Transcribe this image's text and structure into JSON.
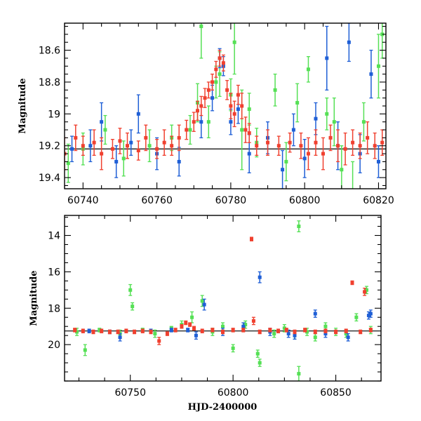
{
  "chart_data": [
    {
      "type": "scatter",
      "title": "",
      "xlabel": "",
      "ylabel": "Magnitude",
      "xlim": [
        60735,
        60822
      ],
      "ylim": [
        19.47,
        18.43
      ],
      "y_inverted": true,
      "xticks": [
        60740,
        60760,
        60780,
        60800,
        60820
      ],
      "yticks": [
        18.6,
        18.8,
        19,
        19.2,
        19.4
      ],
      "ytick_labels": [
        "18.6",
        "18.8",
        "19",
        "19.2",
        "19.4"
      ],
      "error_bars": true,
      "colors": {
        "green": "#55e055",
        "blue": "#1f5fd6",
        "red": "#f0402f",
        "trend": "#000000"
      },
      "series": [
        {
          "color": "green",
          "points": [
            [
              60736,
              19.31,
              0.12
            ],
            [
              60740,
              19.22,
              0.1
            ],
            [
              60746,
              19.1,
              0.09
            ],
            [
              60751,
              19.28,
              0.11
            ],
            [
              60758,
              19.2,
              0.1
            ],
            [
              60764,
              19.15,
              0.08
            ],
            [
              60769,
              19.1,
              0.09
            ],
            [
              60771,
              18.93,
              0.12
            ],
            [
              60772,
              18.45,
              0.2
            ],
            [
              60774,
              19.05,
              0.1
            ],
            [
              60776,
              18.8,
              0.1
            ],
            [
              60777,
              18.75,
              0.14
            ],
            [
              60780,
              18.88,
              0.1
            ],
            [
              60781,
              18.55,
              0.2
            ],
            [
              60783,
              19.1,
              0.25
            ],
            [
              60785,
              18.97,
              0.1
            ],
            [
              60787,
              19.18,
              0.09
            ],
            [
              60792,
              18.85,
              0.1
            ],
            [
              60795,
              19.3,
              0.12
            ],
            [
              60798,
              18.93,
              0.12
            ],
            [
              60801,
              18.72,
              0.08
            ],
            [
              60806,
              19.0,
              0.1
            ],
            [
              60808,
              19.05,
              0.15
            ],
            [
              60810,
              19.35,
              0.15
            ],
            [
              60813,
              19.5,
              0.2
            ],
            [
              60816,
              19.05,
              0.12
            ],
            [
              60820,
              18.7,
              0.2
            ],
            [
              60821,
              18.5,
              0.15
            ]
          ]
        },
        {
          "color": "blue",
          "points": [
            [
              60737,
              19.22,
              0.08
            ],
            [
              60742,
              19.2,
              0.1
            ],
            [
              60745,
              19.05,
              0.12
            ],
            [
              60749,
              19.3,
              0.1
            ],
            [
              60753,
              19.18,
              0.08
            ],
            [
              60755,
              19.0,
              0.12
            ],
            [
              60760,
              19.25,
              0.1
            ],
            [
              60766,
              19.3,
              0.09
            ],
            [
              60772,
              19.05,
              0.1
            ],
            [
              60775,
              18.9,
              0.08
            ],
            [
              60777,
              18.65,
              0.06
            ],
            [
              60778,
              18.7,
              0.06
            ],
            [
              60780,
              19.05,
              0.08
            ],
            [
              60782,
              18.97,
              0.09
            ],
            [
              60785,
              19.25,
              0.12
            ],
            [
              60790,
              19.15,
              0.1
            ],
            [
              60794,
              19.35,
              0.12
            ],
            [
              60797,
              19.1,
              0.1
            ],
            [
              60800,
              19.28,
              0.12
            ],
            [
              60803,
              19.03,
              0.1
            ],
            [
              60806,
              18.65,
              0.2
            ],
            [
              60809,
              19.2,
              0.15
            ],
            [
              60812,
              18.55,
              0.12
            ],
            [
              60815,
              19.25,
              0.12
            ],
            [
              60818,
              18.75,
              0.15
            ],
            [
              60820,
              19.3,
              0.1
            ]
          ]
        },
        {
          "color": "red",
          "points": [
            [
              60735,
              19.25,
              0.1
            ],
            [
              60738,
              19.15,
              0.08
            ],
            [
              60740,
              19.2,
              0.06
            ],
            [
              60743,
              19.18,
              0.08
            ],
            [
              60745,
              19.25,
              0.1
            ],
            [
              60748,
              19.22,
              0.06
            ],
            [
              60750,
              19.17,
              0.08
            ],
            [
              60752,
              19.2,
              0.08
            ],
            [
              60755,
              19.23,
              0.06
            ],
            [
              60757,
              19.15,
              0.08
            ],
            [
              60760,
              19.22,
              0.06
            ],
            [
              60762,
              19.18,
              0.08
            ],
            [
              60764,
              19.2,
              0.06
            ],
            [
              60766,
              19.15,
              0.08
            ],
            [
              60768,
              19.1,
              0.06
            ],
            [
              60770,
              19.05,
              0.06
            ],
            [
              60771,
              18.98,
              0.06
            ],
            [
              60772,
              18.95,
              0.06
            ],
            [
              60773,
              18.9,
              0.06
            ],
            [
              60774,
              18.85,
              0.05
            ],
            [
              60775,
              18.8,
              0.05
            ],
            [
              60776,
              18.72,
              0.05
            ],
            [
              60777,
              18.65,
              0.05
            ],
            [
              60778,
              18.68,
              0.05
            ],
            [
              60779,
              18.85,
              0.06
            ],
            [
              60780,
              18.95,
              0.08
            ],
            [
              60781,
              19.0,
              0.08
            ],
            [
              60782,
              18.88,
              0.06
            ],
            [
              60783,
              18.95,
              0.08
            ],
            [
              60784,
              19.1,
              0.08
            ],
            [
              60785,
              19.12,
              0.06
            ],
            [
              60787,
              19.2,
              0.06
            ],
            [
              60790,
              19.18,
              0.08
            ],
            [
              60793,
              19.2,
              0.06
            ],
            [
              60796,
              19.18,
              0.06
            ],
            [
              60799,
              19.2,
              0.08
            ],
            [
              60801,
              19.25,
              0.1
            ],
            [
              60803,
              19.18,
              0.08
            ],
            [
              60805,
              19.25,
              0.1
            ],
            [
              60807,
              19.15,
              0.08
            ],
            [
              60809,
              19.2,
              0.1
            ],
            [
              60811,
              19.22,
              0.1
            ],
            [
              60813,
              19.18,
              0.08
            ],
            [
              60815,
              19.2,
              0.08
            ],
            [
              60817,
              19.15,
              0.1
            ],
            [
              60819,
              19.2,
              0.08
            ],
            [
              60821,
              19.18,
              0.08
            ]
          ]
        }
      ],
      "trend_line": [
        [
          60735,
          19.22
        ],
        [
          60822,
          19.22
        ]
      ]
    },
    {
      "type": "scatter",
      "title": "",
      "xlabel": "HJD-2400000",
      "ylabel": "Magnitude",
      "xlim": [
        60718,
        60872
      ],
      "ylim": [
        22.0,
        12.9
      ],
      "y_inverted": true,
      "xticks": [
        60750,
        60800,
        60850
      ],
      "yticks": [
        14,
        16,
        18,
        20
      ],
      "ytick_labels": [
        "14",
        "16",
        "18",
        "20"
      ],
      "error_bars": true,
      "colors": {
        "green": "#55e055",
        "blue": "#1f5fd6",
        "red": "#f0402f",
        "trend": "#000000"
      },
      "series": [
        {
          "color": "green",
          "points": [
            [
              60724,
              19.3,
              0.2
            ],
            [
              60728,
              20.3,
              0.3
            ],
            [
              60735,
              19.2,
              0.1
            ],
            [
              60745,
              19.4,
              0.2
            ],
            [
              60750,
              17.0,
              0.3
            ],
            [
              60751,
              17.9,
              0.2
            ],
            [
              60756,
              19.2,
              0.1
            ],
            [
              60762,
              19.4,
              0.2
            ],
            [
              60770,
              19.1,
              0.1
            ],
            [
              60775,
              18.9,
              0.2
            ],
            [
              60780,
              18.5,
              0.3
            ],
            [
              60785,
              17.6,
              0.3
            ],
            [
              60790,
              19.3,
              0.2
            ],
            [
              60795,
              19.0,
              0.2
            ],
            [
              60800,
              20.2,
              0.2
            ],
            [
              60806,
              18.9,
              0.2
            ],
            [
              60812,
              20.5,
              0.2
            ],
            [
              60813,
              21.0,
              0.2
            ],
            [
              60820,
              19.4,
              0.2
            ],
            [
              60825,
              19.1,
              0.2
            ],
            [
              60830,
              19.5,
              0.2
            ],
            [
              60832,
              13.5,
              0.3
            ],
            [
              60832,
              21.6,
              0.4
            ],
            [
              60836,
              19.3,
              0.2
            ],
            [
              60840,
              19.6,
              0.2
            ],
            [
              60845,
              19.0,
              0.2
            ],
            [
              60850,
              19.3,
              0.2
            ],
            [
              60855,
              19.4,
              0.2
            ],
            [
              60860,
              18.5,
              0.2
            ],
            [
              60865,
              17.0,
              0.2
            ],
            [
              60867,
              19.2,
              0.2
            ]
          ]
        },
        {
          "color": "blue",
          "points": [
            [
              60730,
              19.25,
              0.1
            ],
            [
              60740,
              19.3,
              0.1
            ],
            [
              60745,
              19.6,
              0.2
            ],
            [
              60760,
              19.25,
              0.1
            ],
            [
              60770,
              19.2,
              0.1
            ],
            [
              60778,
              19.2,
              0.1
            ],
            [
              60782,
              19.5,
              0.2
            ],
            [
              60786,
              17.8,
              0.3
            ],
            [
              60795,
              19.3,
              0.2
            ],
            [
              60805,
              19.0,
              0.2
            ],
            [
              60813,
              16.3,
              0.3
            ],
            [
              60818,
              19.3,
              0.2
            ],
            [
              60827,
              19.4,
              0.2
            ],
            [
              60830,
              19.5,
              0.2
            ],
            [
              60840,
              18.3,
              0.2
            ],
            [
              60845,
              19.4,
              0.2
            ],
            [
              60856,
              19.6,
              0.2
            ],
            [
              60866,
              18.4,
              0.2
            ],
            [
              60867,
              18.3,
              0.2
            ]
          ]
        },
        {
          "color": "red",
          "points": [
            [
              60723,
              19.2,
              0.1
            ],
            [
              60727,
              19.25,
              0.1
            ],
            [
              60732,
              19.3,
              0.1
            ],
            [
              60736,
              19.25,
              0.1
            ],
            [
              60740,
              19.3,
              0.1
            ],
            [
              60744,
              19.3,
              0.1
            ],
            [
              60748,
              19.25,
              0.1
            ],
            [
              60752,
              19.3,
              0.1
            ],
            [
              60756,
              19.25,
              0.1
            ],
            [
              60760,
              19.3,
              0.1
            ],
            [
              60764,
              19.8,
              0.2
            ],
            [
              60768,
              19.4,
              0.1
            ],
            [
              60772,
              19.2,
              0.1
            ],
            [
              60775,
              19.0,
              0.1
            ],
            [
              60777,
              18.8,
              0.1
            ],
            [
              60779,
              18.9,
              0.1
            ],
            [
              60781,
              19.1,
              0.1
            ],
            [
              60785,
              19.25,
              0.1
            ],
            [
              60790,
              19.2,
              0.1
            ],
            [
              60795,
              19.3,
              0.1
            ],
            [
              60800,
              19.2,
              0.1
            ],
            [
              60805,
              19.2,
              0.1
            ],
            [
              60809,
              14.2,
              0.1
            ],
            [
              60810,
              18.7,
              0.2
            ],
            [
              60813,
              19.3,
              0.1
            ],
            [
              60818,
              19.2,
              0.1
            ],
            [
              60822,
              19.25,
              0.1
            ],
            [
              60826,
              19.2,
              0.1
            ],
            [
              60830,
              19.3,
              0.1
            ],
            [
              60835,
              19.2,
              0.1
            ],
            [
              60840,
              19.3,
              0.1
            ],
            [
              60845,
              19.25,
              0.1
            ],
            [
              60850,
              19.3,
              0.1
            ],
            [
              60855,
              19.25,
              0.1
            ],
            [
              60858,
              16.6,
              0.1
            ],
            [
              60862,
              19.3,
              0.1
            ],
            [
              60864,
              17.1,
              0.2
            ],
            [
              60867,
              19.2,
              0.1
            ]
          ]
        }
      ],
      "trend_line": [
        [
          60718,
          19.25
        ],
        [
          60872,
          19.25
        ]
      ]
    }
  ]
}
